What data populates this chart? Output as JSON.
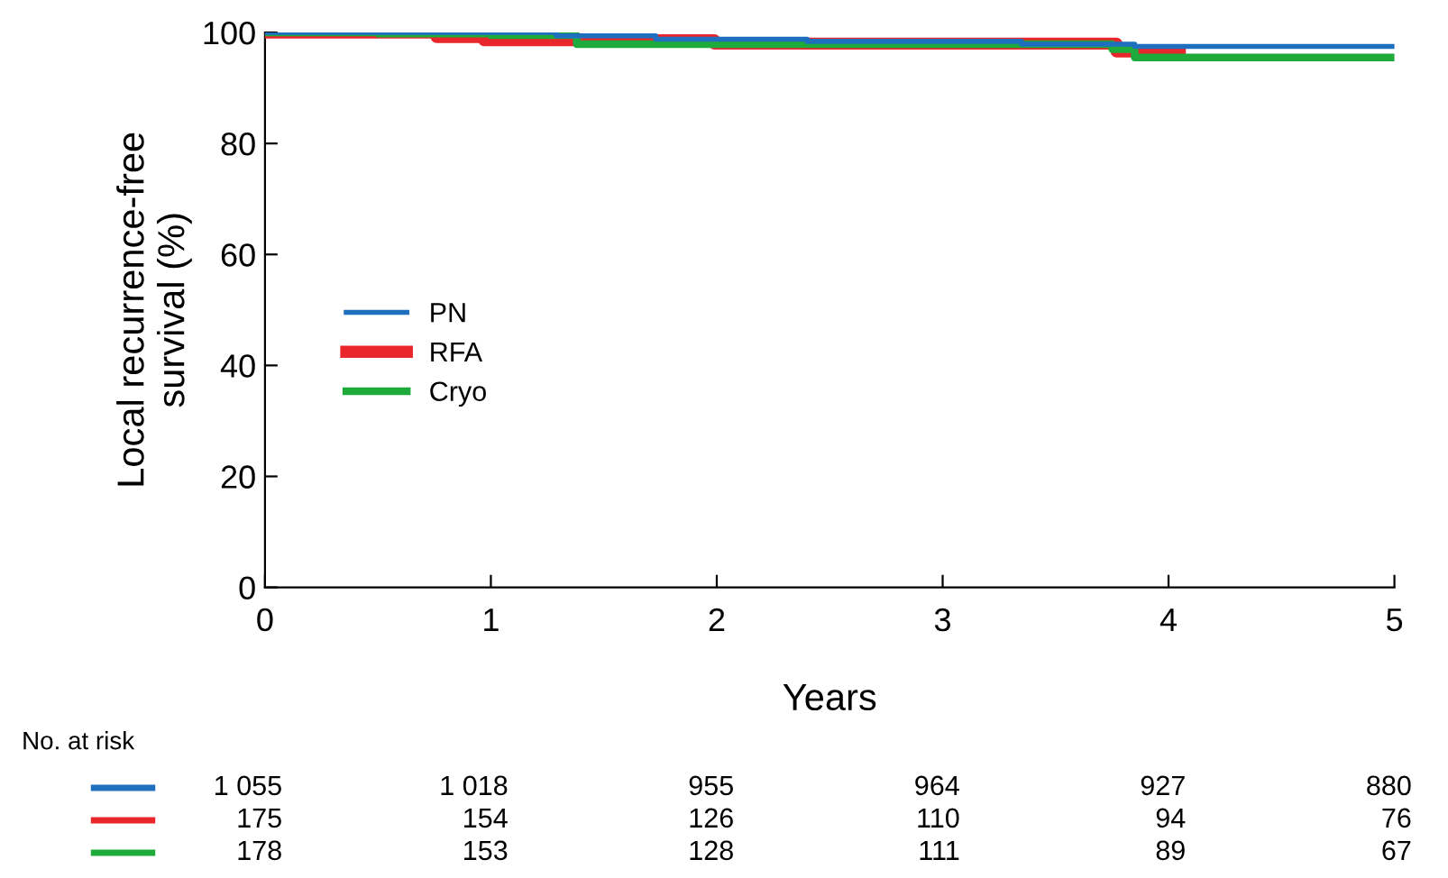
{
  "chart_data": {
    "type": "step",
    "xlabel": "Years",
    "ylabel": "Local recurrence-free\nsurvival (%)",
    "xlim": [
      0,
      5
    ],
    "xticks": [
      0,
      1,
      2,
      3,
      4,
      5
    ],
    "ylim": [
      0,
      100
    ],
    "yticks": [
      0,
      20,
      40,
      60,
      80,
      100
    ],
    "grid": false,
    "legend": "left",
    "marker": "none",
    "line_style": "solid",
    "series": [
      {
        "name": "PN",
        "color": "#1f6fbf",
        "x": [
          0,
          1.29,
          1.73,
          2.4,
          3.35,
          3.85,
          5
        ],
        "values": [
          100,
          99.4,
          98.8,
          98.4,
          97.9,
          97.5,
          97.5
        ]
      },
      {
        "name": "RFA",
        "color": "#e8262b",
        "x": [
          0,
          0.76,
          0.97,
          1.99,
          3.77,
          4.05
        ],
        "values": [
          100,
          99.2,
          98.6,
          98.0,
          96.6,
          96.6
        ]
      },
      {
        "name": "Cryo",
        "color": "#1faa3c",
        "x": [
          0,
          0.5,
          1.0,
          1.38,
          3.75,
          3.85,
          5
        ],
        "values": [
          100,
          99.8,
          99.5,
          97.9,
          97.0,
          95.5,
          95.5
        ]
      }
    ],
    "annotations": [
      "No. at risk",
      "1 055",
      "1 018",
      "955",
      "964",
      "927",
      "880",
      "175",
      "154",
      "126",
      "110",
      "94",
      "76",
      "178",
      "153",
      "128",
      "111",
      "89",
      "67"
    ]
  }
}
